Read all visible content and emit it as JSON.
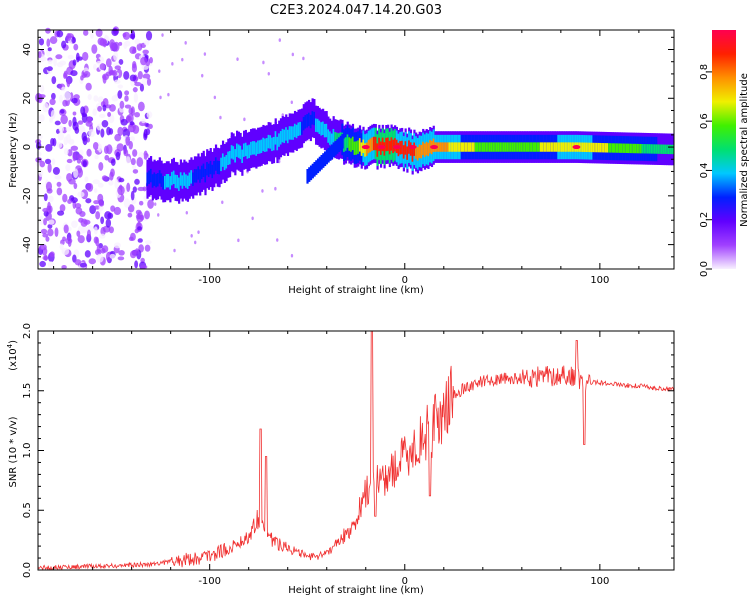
{
  "title": "C2E3.2024.047.14.20.G03",
  "chart_data": [
    {
      "type": "heatmap",
      "xlabel": "Height of straight line (km)",
      "ylabel": "Frequency (Hz)",
      "xlim": [
        -188,
        138
      ],
      "ylim": [
        -50,
        48
      ],
      "x_ticks": [
        -100,
        0,
        100
      ],
      "x_tick_labels": [
        "-100",
        "0",
        "100"
      ],
      "y_ticks": [
        -40,
        -20,
        0,
        20,
        40
      ],
      "y_tick_labels": [
        "-40",
        "-20",
        "0",
        "20",
        "40"
      ],
      "colorbar": {
        "label": "Normalized spectral amplitude",
        "range": [
          0,
          0.97
        ],
        "ticks": [
          0,
          0.2,
          0.4,
          0.6,
          0.8
        ],
        "tick_labels": [
          "0.0",
          "0.2",
          "0.4",
          "0.6",
          "0.8"
        ],
        "colors": [
          "#f8f0ff",
          "#a040ff",
          "#6000ff",
          "#0020ff",
          "#00c8ff",
          "#00e070",
          "#40f000",
          "#f0f000",
          "#ff9000",
          "#ff2000",
          "#ff0050"
        ]
      },
      "features": {
        "noise_region_x": [
          -188,
          -130
        ],
        "trace_points": [
          {
            "x": -132,
            "f": -13,
            "v": 0.32
          },
          {
            "x": -115,
            "f": -14,
            "v": 0.38
          },
          {
            "x": -100,
            "f": -10,
            "v": 0.3
          },
          {
            "x": -88,
            "f": -3,
            "v": 0.42
          },
          {
            "x": -75,
            "f": -1,
            "v": 0.35
          },
          {
            "x": -60,
            "f": 5,
            "v": 0.38
          },
          {
            "x": -48,
            "f": 12,
            "v": 0.33
          },
          {
            "x": -36,
            "f": 3,
            "v": 0.45
          },
          {
            "x": -25,
            "f": 0,
            "v": 0.6
          },
          {
            "x": -15,
            "f": 0,
            "v": 0.9
          },
          {
            "x": -5,
            "f": 0,
            "v": 0.9
          },
          {
            "x": 5,
            "f": -2,
            "v": 0.85
          },
          {
            "x": 15,
            "f": 0,
            "v": 0.8
          },
          {
            "x": 50,
            "f": 0,
            "v": 0.55
          },
          {
            "x": 88,
            "f": 0,
            "v": 0.75
          },
          {
            "x": 138,
            "f": -1,
            "v": 0.45
          }
        ]
      }
    },
    {
      "type": "line",
      "xlabel": "Height of straight line (km)",
      "ylabel": "SNR (10 * v/v)",
      "y_multiplier": "(x10",
      "y_multiplier_exp": "4",
      "y_multiplier_close": ")",
      "xlim": [
        -188,
        138
      ],
      "ylim": [
        0,
        2.0
      ],
      "x_ticks": [
        -100,
        0,
        100
      ],
      "x_tick_labels": [
        "-100",
        "0",
        "100"
      ],
      "y_ticks": [
        0,
        0.5,
        1.0,
        1.5,
        2.0
      ],
      "y_tick_labels": [
        "0.0",
        "0.5",
        "1.0",
        "1.5",
        "2.0"
      ],
      "color": "#f03030",
      "series_envelope": {
        "x": [
          -188,
          -160,
          -140,
          -130,
          -120,
          -110,
          -100,
          -90,
          -80,
          -75,
          -70,
          -65,
          -60,
          -55,
          -50,
          -45,
          -40,
          -35,
          -30,
          -25,
          -20,
          -17,
          -15,
          -10,
          -5,
          0,
          5,
          10,
          15,
          20,
          25,
          30,
          40,
          50,
          60,
          70,
          80,
          85,
          88,
          90,
          95,
          100,
          110,
          120,
          130,
          138
        ],
        "y": [
          0.02,
          0.03,
          0.04,
          0.05,
          0.07,
          0.09,
          0.12,
          0.18,
          0.28,
          0.45,
          0.28,
          0.22,
          0.2,
          0.14,
          0.12,
          0.1,
          0.15,
          0.22,
          0.3,
          0.42,
          0.65,
          0.72,
          0.72,
          0.78,
          0.85,
          0.95,
          1.02,
          1.12,
          1.2,
          1.35,
          1.45,
          1.52,
          1.58,
          1.6,
          1.6,
          1.62,
          1.63,
          1.63,
          1.62,
          1.58,
          1.57,
          1.57,
          1.55,
          1.54,
          1.52,
          1.51
        ]
      },
      "spikes": [
        {
          "x": -74,
          "y": 1.18
        },
        {
          "x": -71,
          "y": 0.95
        },
        {
          "x": -17,
          "y": 2.0
        },
        {
          "x": -15,
          "y": 0.45
        },
        {
          "x": 13,
          "y": 0.62
        },
        {
          "x": 88,
          "y": 1.92
        },
        {
          "x": 92,
          "y": 1.05
        }
      ]
    }
  ]
}
